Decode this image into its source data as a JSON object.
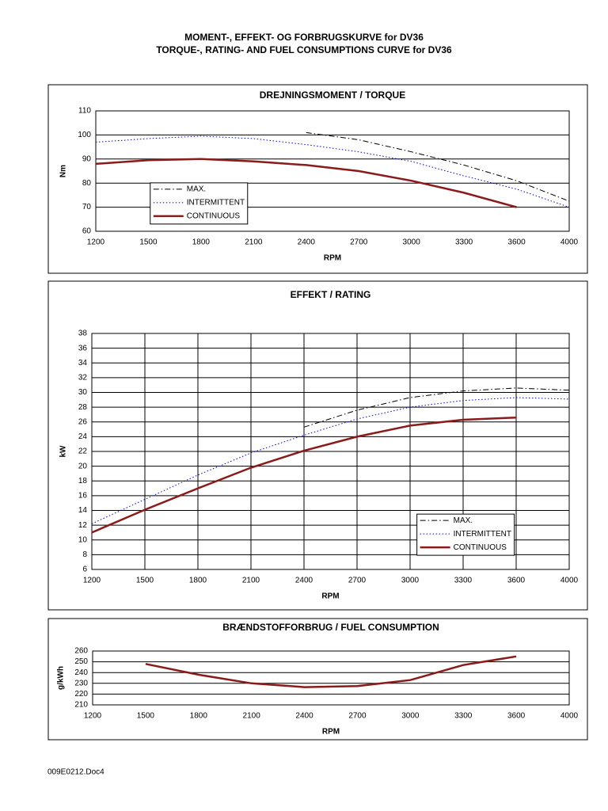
{
  "document": {
    "title_lines": [
      "MOMENT-, EFFEKT- OG FORBRUGSKURVE for DV36",
      "TORQUE-, RATING- AND FUEL CONSUMPTIONS CURVE for DV36"
    ],
    "footer": "009E0212.Doc4"
  },
  "chart_data": [
    {
      "type": "line",
      "title": "DREJNINGSMOMENT / TORQUE",
      "x_label": "RPM",
      "y_label": "Nm",
      "categories": [
        "1200",
        "1500",
        "1800",
        "2100",
        "2400",
        "2700",
        "3000",
        "3300",
        "3600",
        "4000"
      ],
      "ylim": [
        60,
        110
      ],
      "yticks": [
        60,
        70,
        80,
        90,
        100,
        110
      ],
      "grid": true,
      "legend": "lower left",
      "series": [
        {
          "name": "MAX.",
          "color": "#000000",
          "style": "dashdot",
          "values": [
            null,
            null,
            null,
            null,
            101,
            98,
            93,
            87.5,
            81,
            72.5
          ]
        },
        {
          "name": "INTERMITTENT",
          "color": "#0000ff",
          "style": "dotted",
          "values": [
            97,
            98.5,
            99.5,
            98.5,
            96,
            93,
            89,
            83,
            77.5,
            70
          ]
        },
        {
          "name": "CONTINUOUS",
          "color": "#8b1a1a",
          "style": "solid",
          "values": [
            88,
            89.5,
            90,
            89,
            87.5,
            85,
            81,
            76,
            70,
            null
          ]
        }
      ]
    },
    {
      "type": "line",
      "title": "EFFEKT / RATING",
      "x_label": "RPM",
      "y_label": "kW",
      "categories": [
        "1200",
        "1500",
        "1800",
        "2100",
        "2400",
        "2700",
        "3000",
        "3300",
        "3600",
        "4000"
      ],
      "ylim": [
        6,
        38
      ],
      "yticks": [
        6,
        8,
        10,
        12,
        14,
        16,
        18,
        20,
        22,
        24,
        26,
        28,
        30,
        32,
        34,
        36,
        38
      ],
      "grid": true,
      "xgrid": true,
      "legend": "lower right",
      "series": [
        {
          "name": "MAX.",
          "color": "#000000",
          "style": "dashdot",
          "values": [
            null,
            null,
            null,
            null,
            25.3,
            27.6,
            29.3,
            30.2,
            30.6,
            30.3
          ]
        },
        {
          "name": "INTERMITTENT",
          "color": "#0000ff",
          "style": "dotted",
          "values": [
            12.2,
            15.5,
            18.8,
            21.8,
            24.2,
            26.4,
            28,
            28.9,
            29.3,
            29.1
          ]
        },
        {
          "name": "CONTINUOUS",
          "color": "#8b1a1a",
          "style": "solid",
          "values": [
            11,
            14.1,
            17,
            19.8,
            22.1,
            24,
            25.5,
            26.3,
            26.6,
            null
          ]
        }
      ]
    },
    {
      "type": "line",
      "title": "BRÆNDSTOFFORBRUG / FUEL CONSUMPTION",
      "x_label": "RPM",
      "y_label": "g/kWh",
      "categories": [
        "1200",
        "1500",
        "1800",
        "2100",
        "2400",
        "2700",
        "3000",
        "3300",
        "3600",
        "4000"
      ],
      "ylim": [
        210,
        260
      ],
      "yticks": [
        210,
        220,
        230,
        240,
        250,
        260
      ],
      "grid": true,
      "color": "#8b1a1a",
      "values": [
        null,
        248,
        238,
        230,
        226.5,
        227.5,
        233,
        247,
        255,
        null
      ]
    }
  ]
}
